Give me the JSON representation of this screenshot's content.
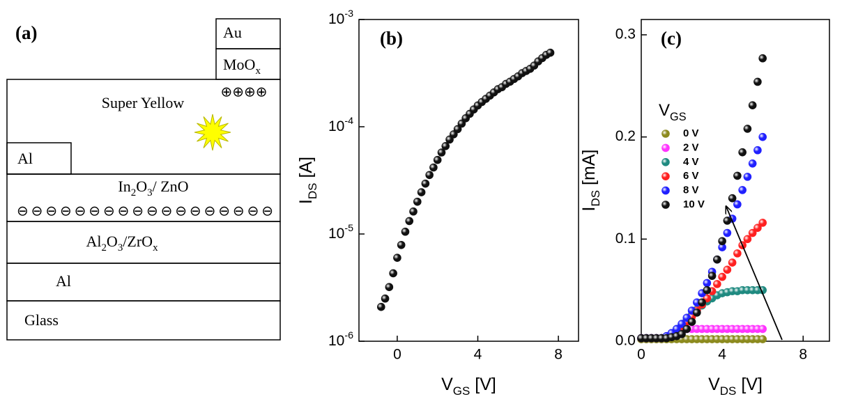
{
  "diagram": {
    "panel_label": "(a)",
    "layers": [
      {
        "label": [
          "Au"
        ]
      },
      {
        "label": [
          "MoO",
          {
            "sub": "x"
          }
        ]
      },
      {
        "label": [
          "Super Yellow"
        ]
      },
      {
        "label": [
          "Al"
        ]
      },
      {
        "label": [
          "In",
          {
            "sub": "2"
          },
          "O",
          {
            "sub": "3"
          },
          "/ ZnO"
        ]
      },
      {
        "label": [
          "Al",
          {
            "sub": "2"
          },
          "O",
          {
            "sub": "3"
          },
          "/ZrO",
          {
            "sub": "x"
          }
        ]
      },
      {
        "label": [
          "Al"
        ]
      },
      {
        "label": [
          "Glass"
        ]
      }
    ],
    "charges_negative": "⊖⊖⊖⊖⊖⊖⊖⊖⊖⊖⊖⊖⊖⊖⊖⊖⊖⊖",
    "charges_positive": "⊕⊕⊕⊕"
  },
  "chart_data": [
    {
      "type": "scatter",
      "panel_label": "(b)",
      "yscale": "log",
      "xlabel": [
        "V",
        {
          "sub": "GS"
        },
        "  [V]"
      ],
      "ylabel": [
        "I",
        {
          "sub": "DS"
        },
        " [A]"
      ],
      "xlim": [
        -1.9,
        9
      ],
      "xticks": [
        0,
        4,
        8
      ],
      "ylim": [
        1e-06,
        0.001
      ],
      "yticks": [
        {
          "value": 1e-06,
          "label": [
            "10",
            {
              "sup": "-6"
            }
          ]
        },
        {
          "value": 1e-05,
          "label": [
            "10",
            {
              "sup": "-5"
            }
          ]
        },
        {
          "value": 0.0001,
          "label": [
            "10",
            {
              "sup": "-4"
            }
          ]
        },
        {
          "value": 0.001,
          "label": [
            "10",
            {
              "sup": "-3"
            }
          ]
        }
      ],
      "color": "#111111",
      "x": [
        -0.8,
        -0.6,
        -0.4,
        -0.2,
        0,
        0.2,
        0.4,
        0.6,
        0.8,
        1.0,
        1.2,
        1.4,
        1.6,
        1.8,
        2.0,
        2.2,
        2.4,
        2.6,
        2.8,
        3.0,
        3.2,
        3.4,
        3.6,
        3.8,
        4.0,
        4.2,
        4.4,
        4.6,
        4.8,
        5.0,
        5.2,
        5.4,
        5.6,
        5.8,
        6.0,
        6.2,
        6.4,
        6.6,
        6.8,
        7.0,
        7.2,
        7.4,
        7.6
      ],
      "values": [
        2.09e-06,
        2.5e-06,
        3.2e-06,
        4.3e-06,
        6e-06,
        7.9e-06,
        1.05e-05,
        1.32e-05,
        1.62e-05,
        2e-05,
        2.45e-05,
        2.95e-05,
        3.55e-05,
        4.17e-05,
        4.9e-05,
        5.75e-05,
        6.6e-05,
        7.6e-05,
        8.5e-05,
        9.5e-05,
        0.000107,
        0.00012,
        0.000132,
        0.000145,
        0.000158,
        0.00017,
        0.000182,
        0.000195,
        0.000209,
        0.000224,
        0.000234,
        0.000251,
        0.000263,
        0.000279,
        0.000295,
        0.000316,
        0.000331,
        0.000347,
        0.000372,
        0.000407,
        0.000437,
        0.000468,
        0.00049
      ]
    },
    {
      "type": "scatter",
      "panel_label": "(c)",
      "xlabel": [
        "V",
        {
          "sub": "DS"
        },
        " [V]"
      ],
      "ylabel": [
        "I",
        {
          "sub": "DS"
        },
        " [mA]"
      ],
      "legend_title": [
        "V",
        {
          "sub": "GS"
        }
      ],
      "xlim": [
        0,
        9.3
      ],
      "xticks": [
        0,
        4,
        8
      ],
      "ylim": [
        0,
        0.315
      ],
      "yticks": [
        {
          "value": 0,
          "label": "0.0"
        },
        0.1,
        0.2,
        0.3
      ],
      "x": [
        0,
        0.25,
        0.5,
        0.75,
        1.0,
        1.25,
        1.5,
        1.75,
        2.0,
        2.25,
        2.5,
        2.75,
        3.0,
        3.25,
        3.5,
        3.75,
        4.0,
        4.25,
        4.5,
        4.75,
        5.0,
        5.25,
        5.5,
        5.75,
        6.0
      ],
      "series": [
        {
          "name": "0 V",
          "color": "#8c8a1e",
          "values": [
            0.002,
            0.002,
            0.002,
            0.002,
            0.002,
            0.002,
            0.002,
            0.002,
            0.002,
            0.002,
            0.002,
            0.002,
            0.002,
            0.002,
            0.002,
            0.002,
            0.002,
            0.002,
            0.002,
            0.002,
            0.002,
            0.002,
            0.002,
            0.002,
            0.002
          ]
        },
        {
          "name": "2 V",
          "color": "#ff33ff",
          "values": [
            0.003,
            0.003,
            0.003,
            0.003,
            0.003,
            0.005,
            0.008,
            0.01,
            0.011,
            0.012,
            0.012,
            0.012,
            0.012,
            0.012,
            0.012,
            0.012,
            0.012,
            0.012,
            0.012,
            0.012,
            0.012,
            0.012,
            0.012,
            0.012,
            0.012
          ]
        },
        {
          "name": "4 V",
          "color": "#1f8a80",
          "values": [
            0.003,
            0.003,
            0.003,
            0.003,
            0.003,
            0.005,
            0.008,
            0.012,
            0.016,
            0.021,
            0.026,
            0.031,
            0.035,
            0.039,
            0.042,
            0.045,
            0.047,
            0.048,
            0.049,
            0.049,
            0.05,
            0.05,
            0.05,
            0.05,
            0.05
          ]
        },
        {
          "name": "6 V",
          "color": "#ff2020",
          "values": [
            0.003,
            0.003,
            0.003,
            0.003,
            0.003,
            0.004,
            0.007,
            0.01,
            0.014,
            0.019,
            0.024,
            0.03,
            0.036,
            0.042,
            0.049,
            0.056,
            0.063,
            0.07,
            0.077,
            0.086,
            0.094,
            0.1,
            0.106,
            0.111,
            0.116
          ]
        },
        {
          "name": "8 V",
          "color": "#2020ff",
          "values": [
            0.003,
            0.003,
            0.003,
            0.003,
            0.003,
            0.005,
            0.008,
            0.012,
            0.017,
            0.023,
            0.03,
            0.038,
            0.047,
            0.057,
            0.068,
            0.08,
            0.092,
            0.106,
            0.12,
            0.134,
            0.148,
            0.161,
            0.174,
            0.187,
            0.2
          ]
        },
        {
          "name": "10 V",
          "color": "#111111",
          "values": [
            0.003,
            0.003,
            0.003,
            0.003,
            0.003,
            0.003,
            0.004,
            0.005,
            0.007,
            0.012,
            0.019,
            0.028,
            0.038,
            0.05,
            0.064,
            0.08,
            0.098,
            0.118,
            0.14,
            0.162,
            0.185,
            0.208,
            0.231,
            0.254,
            0.277
          ]
        }
      ]
    }
  ]
}
